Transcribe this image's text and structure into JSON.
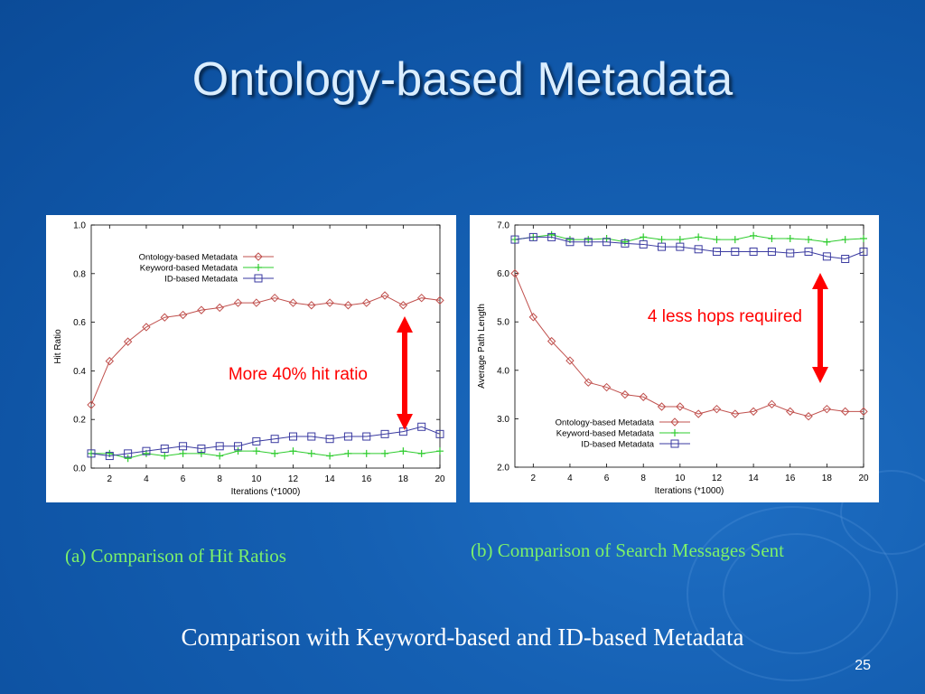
{
  "slide": {
    "title": "Ontology-based Metadata",
    "caption_a": "(a) Comparison of Hit Ratios",
    "caption_b": "(b) Comparison of Search Messages Sent",
    "bottom_caption": "Comparison with Keyword-based and ID-based Metadata",
    "page_number": "25"
  },
  "colors": {
    "ontology": "#c0504d",
    "keyword": "#2ecc2e",
    "id": "#3a3aa0",
    "annotation": "#ff0000",
    "caption": "#7cf06a"
  },
  "chart_data": [
    {
      "type": "line",
      "xlabel": "Iterations (*1000)",
      "ylabel": "Hit Ratio",
      "xlim": [
        1,
        20
      ],
      "ylim": [
        0.0,
        1.0
      ],
      "xticks": [
        2,
        4,
        6,
        8,
        10,
        12,
        14,
        16,
        18,
        20
      ],
      "yticks": [
        0.0,
        0.2,
        0.4,
        0.6,
        0.8,
        1.0
      ],
      "ytick_decimals": 1,
      "legend_position": "top-left",
      "annotation": "More 40% hit ratio",
      "x": [
        1,
        2,
        3,
        4,
        5,
        6,
        7,
        8,
        9,
        10,
        11,
        12,
        13,
        14,
        15,
        16,
        17,
        18,
        19,
        20
      ],
      "series": [
        {
          "name": "Ontology-based Metadata",
          "marker": "diamond",
          "values": [
            0.26,
            0.44,
            0.52,
            0.58,
            0.62,
            0.63,
            0.65,
            0.66,
            0.68,
            0.68,
            0.7,
            0.68,
            0.67,
            0.68,
            0.67,
            0.68,
            0.71,
            0.67,
            0.7,
            0.69
          ]
        },
        {
          "name": "Keyword-based Metadata",
          "marker": "plus",
          "values": [
            0.06,
            0.06,
            0.04,
            0.06,
            0.05,
            0.06,
            0.06,
            0.05,
            0.07,
            0.07,
            0.06,
            0.07,
            0.06,
            0.05,
            0.06,
            0.06,
            0.06,
            0.07,
            0.06,
            0.07
          ]
        },
        {
          "name": "ID-based Metadata",
          "marker": "square",
          "values": [
            0.06,
            0.05,
            0.06,
            0.07,
            0.08,
            0.09,
            0.08,
            0.09,
            0.09,
            0.11,
            0.12,
            0.13,
            0.13,
            0.12,
            0.13,
            0.13,
            0.14,
            0.15,
            0.17,
            0.14
          ]
        }
      ]
    },
    {
      "type": "line",
      "xlabel": "Iterations (*1000)",
      "ylabel": "Average Path Length",
      "xlim": [
        1,
        20
      ],
      "ylim": [
        2.0,
        7.0
      ],
      "xticks": [
        2,
        4,
        6,
        8,
        10,
        12,
        14,
        16,
        18,
        20
      ],
      "yticks": [
        2.0,
        3.0,
        4.0,
        5.0,
        6.0,
        7.0
      ],
      "ytick_decimals": 1,
      "legend_position": "bottom-left",
      "annotation": "4 less hops required",
      "x": [
        1,
        2,
        3,
        4,
        5,
        6,
        7,
        8,
        9,
        10,
        11,
        12,
        13,
        14,
        15,
        16,
        17,
        18,
        19,
        20
      ],
      "series": [
        {
          "name": "Ontology-based Metadata",
          "marker": "diamond",
          "values": [
            6.0,
            5.1,
            4.6,
            4.2,
            3.75,
            3.65,
            3.5,
            3.45,
            3.25,
            3.25,
            3.1,
            3.2,
            3.1,
            3.15,
            3.3,
            3.15,
            3.05,
            3.2,
            3.15,
            3.15
          ]
        },
        {
          "name": "Keyword-based Metadata",
          "marker": "plus",
          "values": [
            6.7,
            6.75,
            6.8,
            6.7,
            6.7,
            6.72,
            6.65,
            6.75,
            6.7,
            6.7,
            6.75,
            6.7,
            6.7,
            6.78,
            6.72,
            6.72,
            6.7,
            6.65,
            6.7,
            6.72
          ]
        },
        {
          "name": "ID-based Metadata",
          "marker": "square",
          "values": [
            6.7,
            6.75,
            6.75,
            6.65,
            6.65,
            6.65,
            6.62,
            6.6,
            6.55,
            6.55,
            6.5,
            6.45,
            6.45,
            6.45,
            6.45,
            6.42,
            6.45,
            6.35,
            6.3,
            6.45
          ]
        }
      ]
    }
  ]
}
